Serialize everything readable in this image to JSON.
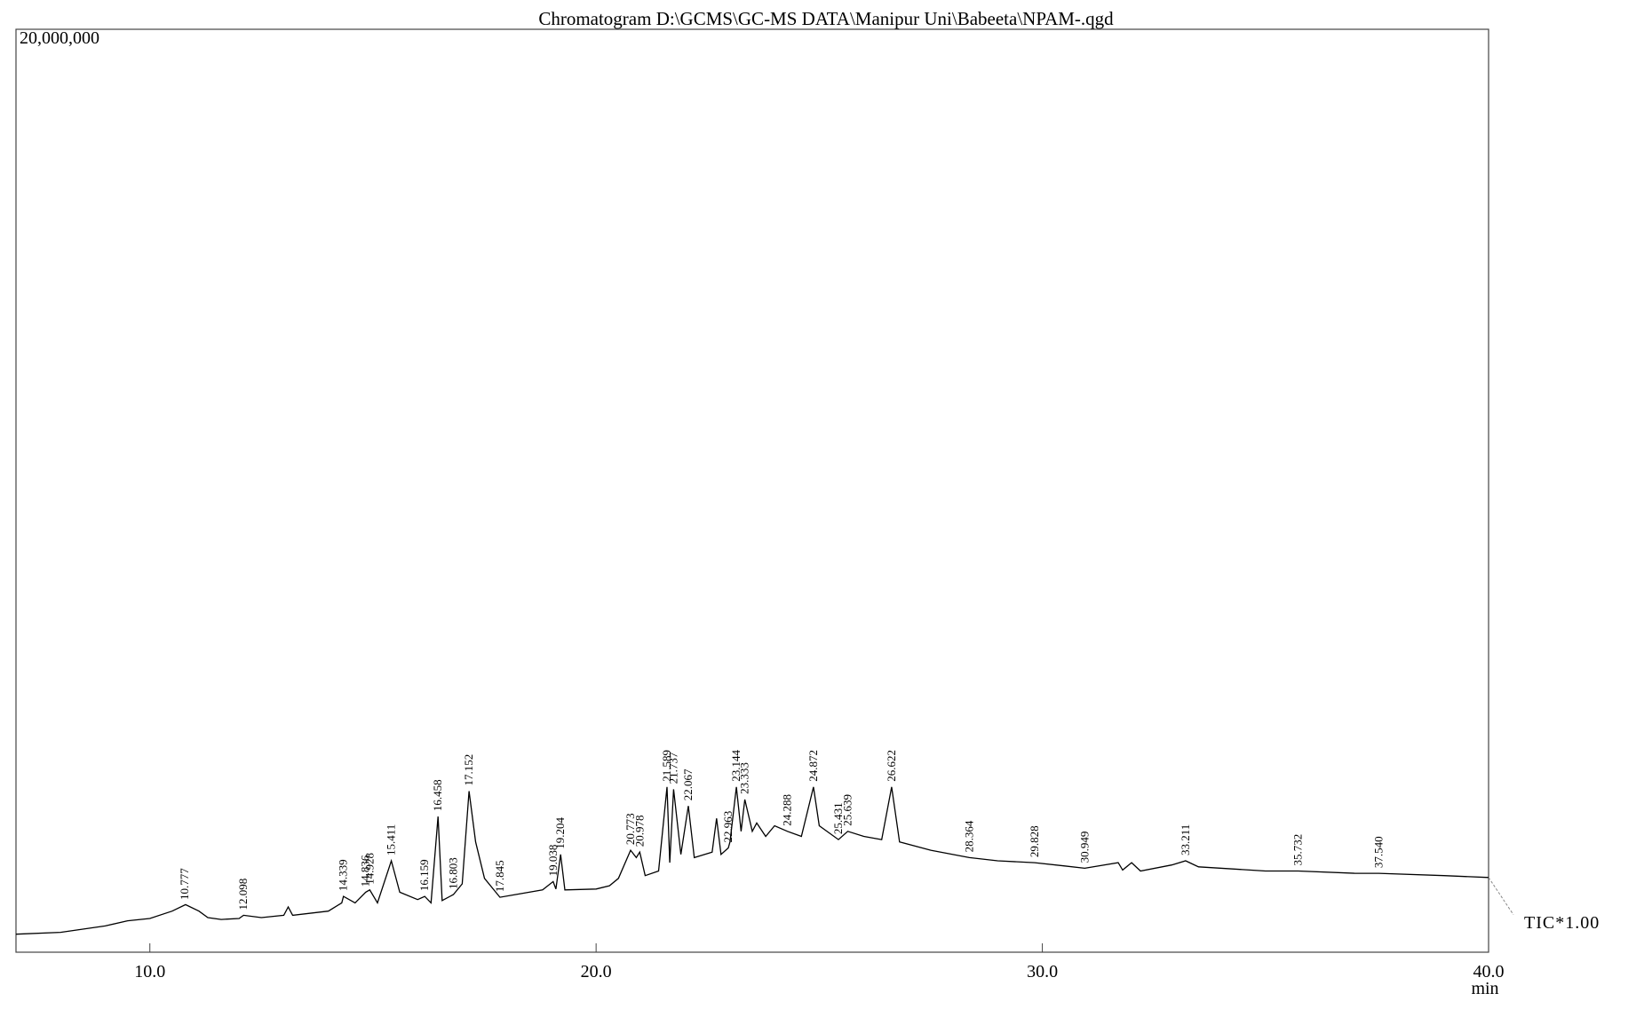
{
  "chart_data": {
    "type": "line",
    "title": "Chromatogram D:\\GCMS\\GC-MS DATA\\Manipur Uni\\Babeeta\\NPAM-.qgd",
    "xlabel": "min",
    "xlim": [
      7.0,
      40.0
    ],
    "ylim": [
      0,
      20000000
    ],
    "xticks": [
      {
        "value": 10,
        "label": "10.0"
      },
      {
        "value": 20,
        "label": "20.0"
      },
      {
        "value": 30,
        "label": "30.0"
      },
      {
        "value": 40,
        "label": "40.0"
      }
    ],
    "yticks": [
      {
        "value": 20000000,
        "label": "20,000,000"
      }
    ],
    "x": [
      7.0,
      8.0,
      9.0,
      9.5,
      10.0,
      10.5,
      10.8,
      11.1,
      11.3,
      11.6,
      12.0,
      12.1,
      12.5,
      13.0,
      13.1,
      13.2,
      14.0,
      14.3,
      14.339,
      14.6,
      14.836,
      14.928,
      15.1,
      15.411,
      15.6,
      16.0,
      16.159,
      16.3,
      16.458,
      16.55,
      16.803,
      17.0,
      17.152,
      17.3,
      17.5,
      17.845,
      18.2,
      18.8,
      19.038,
      19.1,
      19.204,
      19.3,
      20.0,
      20.3,
      20.5,
      20.773,
      20.9,
      20.978,
      21.1,
      21.4,
      21.589,
      21.65,
      21.737,
      21.9,
      22.067,
      22.2,
      22.6,
      22.7,
      22.8,
      22.963,
      23.0,
      23.144,
      23.25,
      23.333,
      23.5,
      23.6,
      23.8,
      24.0,
      24.288,
      24.6,
      24.872,
      25.0,
      25.431,
      25.639,
      26.0,
      26.4,
      26.622,
      26.8,
      27.5,
      28.364,
      29.0,
      29.828,
      30.5,
      30.949,
      31.7,
      31.8,
      32.0,
      32.2,
      32.9,
      33.211,
      33.5,
      35.0,
      35.732,
      37.0,
      37.54,
      39.0,
      40.0
    ],
    "series": [
      {
        "name": "TIC*1.00",
        "color": "#000000",
        "values": [
          390000,
          430000,
          570000,
          680000,
          730000,
          890000,
          1030000,
          890000,
          750000,
          710000,
          730000,
          800000,
          750000,
          800000,
          980000,
          800000,
          890000,
          1070000,
          1210000,
          1070000,
          1300000,
          1350000,
          1070000,
          1980000,
          1300000,
          1140000,
          1210000,
          1070000,
          2940000,
          1120000,
          1250000,
          1480000,
          3490000,
          2390000,
          1600000,
          1190000,
          1250000,
          1350000,
          1530000,
          1370000,
          2120000,
          1350000,
          1370000,
          1440000,
          1600000,
          2210000,
          2050000,
          2170000,
          1660000,
          1760000,
          3580000,
          1940000,
          3530000,
          2120000,
          3170000,
          2050000,
          2170000,
          2900000,
          2120000,
          2260000,
          2390000,
          3580000,
          2620000,
          3310000,
          2620000,
          2800000,
          2510000,
          2740000,
          2620000,
          2510000,
          3580000,
          2740000,
          2440000,
          2620000,
          2510000,
          2440000,
          3580000,
          2390000,
          2210000,
          2050000,
          1980000,
          1940000,
          1870000,
          1820000,
          1940000,
          1780000,
          1940000,
          1760000,
          1890000,
          1980000,
          1850000,
          1760000,
          1760000,
          1710000,
          1710000,
          1660000,
          1620000
        ]
      }
    ],
    "peaks": [
      10.777,
      12.098,
      14.339,
      14.836,
      14.928,
      15.411,
      16.159,
      16.458,
      16.803,
      17.152,
      17.845,
      19.038,
      19.204,
      20.773,
      20.978,
      21.589,
      21.737,
      22.067,
      22.963,
      23.144,
      23.333,
      24.288,
      24.872,
      25.431,
      25.639,
      26.622,
      28.364,
      29.828,
      30.949,
      33.211,
      35.732,
      {
        "value": 37.54,
        "label": "37.540"
      }
    ]
  }
}
